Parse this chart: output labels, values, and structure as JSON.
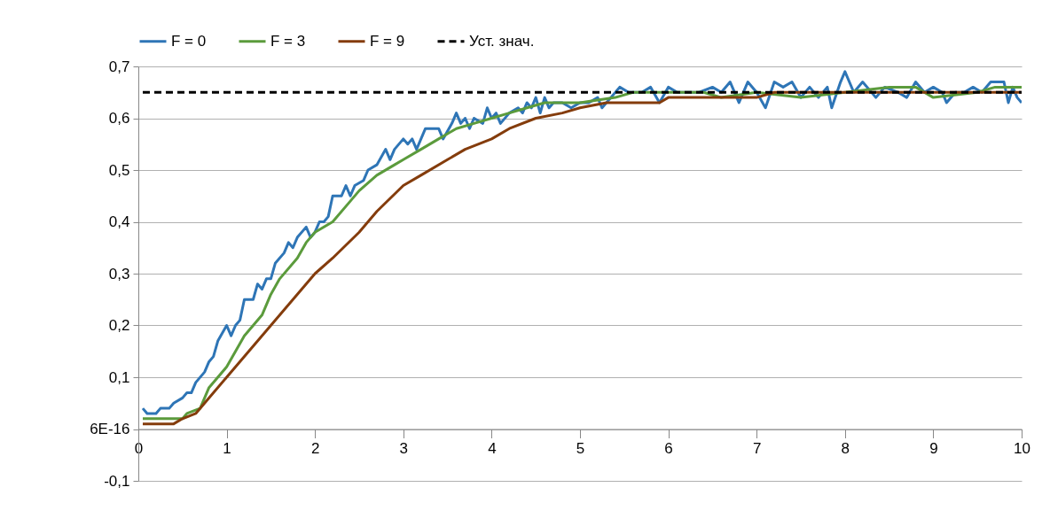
{
  "chart_data": {
    "type": "line",
    "xlim": [
      0,
      10
    ],
    "xticks": [
      0,
      1,
      2,
      3,
      4,
      5,
      6,
      7,
      8,
      9,
      10
    ],
    "ylim": [
      -0.1,
      0.7
    ],
    "yticks": [
      {
        "value": -0.1,
        "label": "-0,1"
      },
      {
        "value": 0,
        "label": "6E-16"
      },
      {
        "value": 0.1,
        "label": "0,1"
      },
      {
        "value": 0.2,
        "label": "0,2"
      },
      {
        "value": 0.3,
        "label": "0,3"
      },
      {
        "value": 0.4,
        "label": "0,4"
      },
      {
        "value": 0.5,
        "label": "0,5"
      },
      {
        "value": 0.6,
        "label": "0,6"
      },
      {
        "value": 0.7,
        "label": "0,7"
      }
    ],
    "grid": "y",
    "legend": "top",
    "line_style": "solid",
    "marker": "none",
    "series": [
      {
        "name": "F = 0",
        "color": "#2e75b6",
        "x": [
          0.05,
          0.1,
          0.2,
          0.25,
          0.35,
          0.4,
          0.5,
          0.55,
          0.6,
          0.65,
          0.75,
          0.8,
          0.85,
          0.9,
          1.0,
          1.05,
          1.1,
          1.15,
          1.2,
          1.3,
          1.35,
          1.4,
          1.45,
          1.5,
          1.55,
          1.65,
          1.7,
          1.75,
          1.8,
          1.9,
          1.95,
          2.0,
          2.05,
          2.1,
          2.15,
          2.2,
          2.3,
          2.35,
          2.4,
          2.45,
          2.55,
          2.6,
          2.7,
          2.8,
          2.85,
          2.9,
          3.0,
          3.05,
          3.1,
          3.15,
          3.25,
          3.4,
          3.45,
          3.55,
          3.6,
          3.65,
          3.7,
          3.75,
          3.8,
          3.9,
          3.95,
          4.0,
          4.05,
          4.1,
          4.2,
          4.3,
          4.35,
          4.4,
          4.45,
          4.5,
          4.55,
          4.6,
          4.65,
          4.7,
          4.8,
          4.9,
          5.0,
          5.1,
          5.2,
          5.25,
          5.35,
          5.45,
          5.55,
          5.7,
          5.8,
          5.9,
          6.0,
          6.1,
          6.2,
          6.35,
          6.5,
          6.6,
          6.7,
          6.8,
          6.9,
          7.0,
          7.1,
          7.2,
          7.3,
          7.4,
          7.5,
          7.6,
          7.7,
          7.8,
          7.85,
          7.95,
          8.0,
          8.1,
          8.2,
          8.35,
          8.45,
          8.6,
          8.7,
          8.8,
          8.9,
          9.0,
          9.1,
          9.15,
          9.25,
          9.35,
          9.45,
          9.55,
          9.65,
          9.8,
          9.85,
          9.9,
          9.95,
          10.0
        ],
        "values": [
          0.04,
          0.03,
          0.03,
          0.04,
          0.04,
          0.05,
          0.06,
          0.07,
          0.07,
          0.09,
          0.11,
          0.13,
          0.14,
          0.17,
          0.2,
          0.18,
          0.2,
          0.21,
          0.25,
          0.25,
          0.28,
          0.27,
          0.29,
          0.29,
          0.32,
          0.34,
          0.36,
          0.35,
          0.37,
          0.39,
          0.37,
          0.38,
          0.4,
          0.4,
          0.41,
          0.45,
          0.45,
          0.47,
          0.45,
          0.47,
          0.48,
          0.5,
          0.51,
          0.54,
          0.52,
          0.54,
          0.56,
          0.55,
          0.56,
          0.54,
          0.58,
          0.58,
          0.56,
          0.59,
          0.61,
          0.59,
          0.6,
          0.58,
          0.6,
          0.59,
          0.62,
          0.6,
          0.61,
          0.59,
          0.61,
          0.62,
          0.61,
          0.63,
          0.62,
          0.64,
          0.61,
          0.64,
          0.62,
          0.63,
          0.63,
          0.62,
          0.63,
          0.63,
          0.64,
          0.62,
          0.64,
          0.66,
          0.65,
          0.65,
          0.66,
          0.63,
          0.66,
          0.65,
          0.65,
          0.65,
          0.66,
          0.65,
          0.67,
          0.63,
          0.67,
          0.65,
          0.62,
          0.67,
          0.66,
          0.67,
          0.64,
          0.66,
          0.64,
          0.66,
          0.62,
          0.67,
          0.69,
          0.65,
          0.67,
          0.64,
          0.66,
          0.65,
          0.64,
          0.67,
          0.65,
          0.66,
          0.65,
          0.63,
          0.65,
          0.65,
          0.66,
          0.65,
          0.67,
          0.67,
          0.63,
          0.66,
          0.64,
          0.63
        ]
      },
      {
        "name": "F = 3",
        "color": "#5b9b3c",
        "x": [
          0.05,
          0.5,
          0.55,
          0.7,
          0.8,
          1.0,
          1.2,
          1.4,
          1.5,
          1.6,
          1.8,
          1.9,
          2.0,
          2.2,
          2.4,
          2.5,
          2.7,
          2.9,
          3.0,
          3.2,
          3.4,
          3.6,
          3.8,
          4.0,
          4.2,
          4.4,
          4.6,
          5.0,
          5.4,
          5.6,
          6.0,
          6.4,
          6.6,
          7.0,
          7.5,
          8.0,
          8.5,
          8.8,
          9.0,
          9.5,
          9.7,
          10.0
        ],
        "values": [
          0.02,
          0.02,
          0.03,
          0.04,
          0.08,
          0.12,
          0.18,
          0.22,
          0.26,
          0.29,
          0.33,
          0.36,
          0.38,
          0.4,
          0.44,
          0.46,
          0.49,
          0.51,
          0.52,
          0.54,
          0.56,
          0.58,
          0.59,
          0.6,
          0.61,
          0.62,
          0.63,
          0.63,
          0.64,
          0.65,
          0.65,
          0.65,
          0.64,
          0.65,
          0.64,
          0.65,
          0.66,
          0.66,
          0.64,
          0.65,
          0.66,
          0.66
        ]
      },
      {
        "name": "F = 9",
        "color": "#843c0c",
        "x": [
          0.05,
          0.4,
          0.5,
          0.65,
          0.75,
          1.0,
          1.5,
          2.0,
          2.2,
          2.5,
          2.7,
          3.0,
          3.2,
          3.5,
          3.7,
          4.0,
          4.2,
          4.5,
          4.8,
          5.0,
          5.3,
          5.9,
          6.0,
          7.0,
          7.2,
          10.0
        ],
        "values": [
          0.01,
          0.01,
          0.02,
          0.03,
          0.05,
          0.1,
          0.2,
          0.3,
          0.33,
          0.38,
          0.42,
          0.47,
          0.49,
          0.52,
          0.54,
          0.56,
          0.58,
          0.6,
          0.61,
          0.62,
          0.63,
          0.63,
          0.64,
          0.64,
          0.65,
          0.65
        ]
      },
      {
        "name": "Уст. знач.",
        "color": "#000000",
        "line_style": "dashed",
        "x": [
          0.05,
          10.0
        ],
        "values": [
          0.65,
          0.65
        ]
      }
    ]
  }
}
